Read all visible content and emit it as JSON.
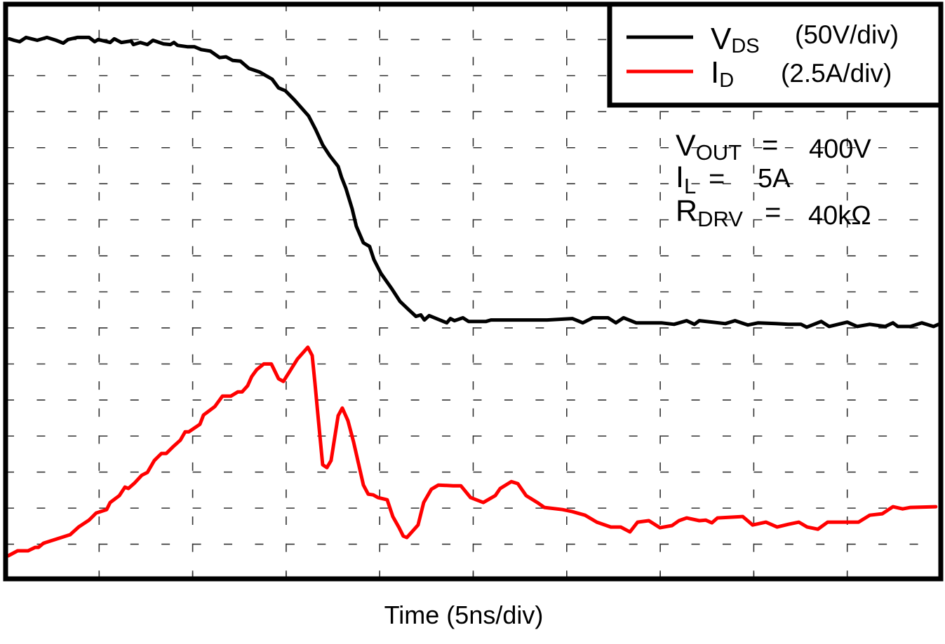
{
  "chart_data": {
    "type": "line",
    "title": "",
    "xlabel": "Time (5ns/div)",
    "xlim": [
      0,
      50
    ],
    "x_divisions": 10,
    "y_divisions": 16,
    "grid": true,
    "legend_position": "top-right",
    "series": [
      {
        "name": "V",
        "name_sub": "DS",
        "scale_label": "(50V/div)",
        "color": "#000000",
        "unit": "V",
        "ylim": [
          -356,
          444
        ],
        "points": [
          [
            0.2,
            395
          ],
          [
            0.45,
            393
          ],
          [
            0.75,
            391
          ],
          [
            1.09,
            397
          ],
          [
            1.69,
            393
          ],
          [
            2.21,
            397
          ],
          [
            2.7,
            393
          ],
          [
            3.08,
            389
          ],
          [
            3.34,
            394
          ],
          [
            3.83,
            397
          ],
          [
            4.46,
            397
          ],
          [
            4.76,
            391
          ],
          [
            4.95,
            394
          ],
          [
            5.59,
            390
          ],
          [
            5.81,
            395
          ],
          [
            6.19,
            390
          ],
          [
            6.71,
            392
          ],
          [
            6.83,
            387
          ],
          [
            7.2,
            390
          ],
          [
            7.58,
            387
          ],
          [
            7.88,
            393
          ],
          [
            8.44,
            388
          ],
          [
            8.81,
            387
          ],
          [
            9.0,
            390
          ],
          [
            9.19,
            386
          ],
          [
            9.71,
            384
          ],
          [
            10.09,
            384
          ],
          [
            10.46,
            380
          ],
          [
            10.95,
            378
          ],
          [
            11.44,
            369
          ],
          [
            11.78,
            370
          ],
          [
            12.15,
            365
          ],
          [
            12.56,
            364
          ],
          [
            13.01,
            354
          ],
          [
            13.58,
            349
          ],
          [
            14.25,
            339
          ],
          [
            14.59,
            327
          ],
          [
            14.96,
            323
          ],
          [
            15.45,
            310
          ],
          [
            16.2,
            288
          ],
          [
            16.58,
            269
          ],
          [
            16.95,
            248
          ],
          [
            17.33,
            233
          ],
          [
            17.78,
            218
          ],
          [
            17.96,
            203
          ],
          [
            18.19,
            188
          ],
          [
            18.53,
            159
          ],
          [
            18.75,
            135
          ],
          [
            19.13,
            112
          ],
          [
            19.46,
            107
          ],
          [
            19.69,
            89
          ],
          [
            20.06,
            70
          ],
          [
            20.63,
            49
          ],
          [
            21.08,
            31
          ],
          [
            21.56,
            19
          ],
          [
            21.94,
            10
          ],
          [
            22.2,
            12
          ],
          [
            22.39,
            5
          ],
          [
            22.65,
            11
          ],
          [
            23.59,
            1
          ],
          [
            23.78,
            7
          ],
          [
            24.0,
            4
          ],
          [
            24.45,
            8
          ],
          [
            24.75,
            3
          ],
          [
            25.69,
            3
          ],
          [
            25.95,
            5
          ],
          [
            28.95,
            5
          ],
          [
            30.3,
            7
          ],
          [
            30.86,
            1
          ],
          [
            31.39,
            8
          ],
          [
            32.21,
            8
          ],
          [
            32.63,
            1
          ],
          [
            33.04,
            8
          ],
          [
            33.71,
            1
          ],
          [
            35.06,
            1
          ],
          [
            35.74,
            -1
          ],
          [
            36.41,
            4
          ],
          [
            36.83,
            -1
          ],
          [
            37.09,
            4
          ],
          [
            38.48,
            0
          ],
          [
            39.0,
            4
          ],
          [
            39.68,
            -2
          ],
          [
            40.24,
            1
          ],
          [
            41.18,
            0
          ],
          [
            41.85,
            -1
          ],
          [
            42.53,
            -1
          ],
          [
            42.83,
            -5
          ],
          [
            43.61,
            3
          ],
          [
            44.03,
            -4
          ],
          [
            45.0,
            2
          ],
          [
            45.53,
            -4
          ],
          [
            46.2,
            -1
          ],
          [
            47.03,
            -4
          ],
          [
            47.44,
            1
          ],
          [
            47.7,
            -4
          ],
          [
            48.38,
            -4
          ],
          [
            48.98,
            1
          ],
          [
            49.61,
            -4
          ],
          [
            49.88,
            -1
          ]
        ]
      },
      {
        "name": "I",
        "name_sub": "D",
        "scale_label": "(2.5A/div)",
        "color": "#ff0000",
        "unit": "A",
        "ylim": [
          0,
          40
        ],
        "points": [
          [
            0.15,
            1.7
          ],
          [
            0.64,
            2.04
          ],
          [
            1.2,
            2.04
          ],
          [
            1.58,
            2.28
          ],
          [
            1.76,
            2.28
          ],
          [
            2.03,
            2.57
          ],
          [
            3.45,
            3.16
          ],
          [
            3.9,
            3.69
          ],
          [
            4.46,
            4.17
          ],
          [
            4.84,
            4.66
          ],
          [
            5.4,
            4.9
          ],
          [
            5.59,
            5.39
          ],
          [
            6.08,
            5.87
          ],
          [
            6.38,
            6.46
          ],
          [
            6.56,
            6.36
          ],
          [
            6.9,
            6.75
          ],
          [
            7.28,
            7.28
          ],
          [
            7.58,
            7.48
          ],
          [
            7.95,
            8.3
          ],
          [
            8.33,
            8.79
          ],
          [
            8.59,
            8.79
          ],
          [
            8.96,
            9.27
          ],
          [
            9.34,
            9.71
          ],
          [
            9.6,
            10.29
          ],
          [
            9.79,
            10.29
          ],
          [
            10.39,
            10.82
          ],
          [
            10.58,
            11.46
          ],
          [
            11.18,
            12.04
          ],
          [
            11.59,
            12.77
          ],
          [
            12.04,
            12.77
          ],
          [
            12.41,
            13.06
          ],
          [
            12.64,
            13.06
          ],
          [
            12.94,
            13.49
          ],
          [
            13.16,
            14.13
          ],
          [
            13.43,
            14.61
          ],
          [
            13.8,
            15.0
          ],
          [
            14.21,
            15.0
          ],
          [
            14.59,
            13.98
          ],
          [
            14.85,
            13.79
          ],
          [
            15.11,
            14.32
          ],
          [
            15.6,
            15.34
          ],
          [
            16.16,
            16.16
          ],
          [
            16.39,
            15.58
          ],
          [
            16.54,
            13.64
          ],
          [
            16.69,
            11.55
          ],
          [
            16.95,
            8.01
          ],
          [
            17.18,
            7.81
          ],
          [
            17.4,
            8.3
          ],
          [
            17.78,
            11.41
          ],
          [
            18.0,
            11.94
          ],
          [
            18.3,
            11.07
          ],
          [
            18.6,
            9.61
          ],
          [
            19.13,
            6.6
          ],
          [
            19.39,
            5.97
          ],
          [
            19.65,
            5.92
          ],
          [
            19.91,
            5.73
          ],
          [
            20.4,
            5.58
          ],
          [
            20.7,
            4.42
          ],
          [
            21.04,
            3.64
          ],
          [
            21.26,
            3.06
          ],
          [
            21.45,
            2.96
          ],
          [
            22.05,
            3.83
          ],
          [
            22.35,
            5.39
          ],
          [
            22.76,
            6.31
          ],
          [
            23.14,
            6.6
          ],
          [
            23.93,
            6.55
          ],
          [
            24.34,
            6.55
          ],
          [
            24.86,
            5.73
          ],
          [
            25.54,
            5.39
          ],
          [
            26.18,
            5.87
          ],
          [
            26.44,
            6.36
          ],
          [
            27.04,
            6.84
          ],
          [
            27.38,
            6.7
          ],
          [
            27.83,
            5.87
          ],
          [
            28.43,
            5.39
          ],
          [
            28.8,
            5.05
          ],
          [
            29.78,
            4.9
          ],
          [
            30.3,
            4.76
          ],
          [
            30.98,
            4.51
          ],
          [
            31.61,
            4.03
          ],
          [
            32.36,
            3.69
          ],
          [
            32.89,
            3.69
          ],
          [
            33.38,
            3.35
          ],
          [
            33.79,
            4.03
          ],
          [
            34.39,
            4.13
          ],
          [
            34.99,
            3.64
          ],
          [
            35.63,
            3.79
          ],
          [
            36.0,
            4.13
          ],
          [
            36.41,
            4.32
          ],
          [
            37.09,
            4.13
          ],
          [
            37.43,
            4.17
          ],
          [
            37.76,
            3.98
          ],
          [
            38.06,
            4.32
          ],
          [
            39.41,
            4.42
          ],
          [
            39.94,
            3.83
          ],
          [
            40.65,
            4.03
          ],
          [
            41.25,
            3.69
          ],
          [
            41.85,
            3.88
          ],
          [
            42.41,
            4.03
          ],
          [
            42.86,
            3.69
          ],
          [
            43.43,
            3.54
          ],
          [
            43.95,
            4.03
          ],
          [
            45.6,
            4.03
          ],
          [
            46.2,
            4.51
          ],
          [
            46.88,
            4.61
          ],
          [
            47.44,
            5.1
          ],
          [
            47.96,
            4.95
          ],
          [
            48.38,
            5.05
          ],
          [
            49.73,
            5.1
          ]
        ]
      }
    ],
    "annotations": [
      {
        "main": "V",
        "sub": "OUT",
        "eq": "=",
        "value": "400V"
      },
      {
        "main": "I",
        "sub": "L",
        "eq": "=",
        "value": "5A"
      },
      {
        "main": "R",
        "sub": "DRV",
        "eq": "=",
        "value": "40kΩ"
      }
    ]
  }
}
